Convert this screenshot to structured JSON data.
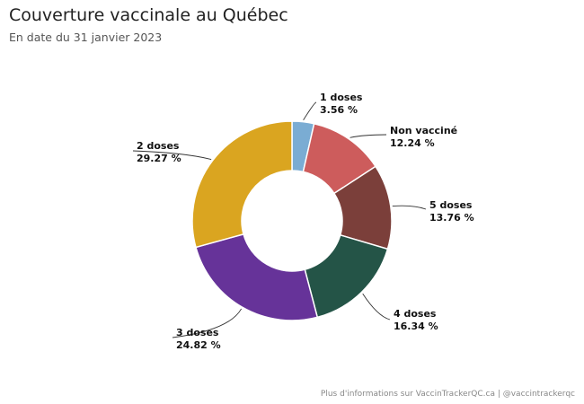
{
  "header": {
    "title": "Couverture vaccinale au Québec",
    "subtitle": "En date du 31 janvier 2023"
  },
  "footer": {
    "credit": "Plus d'informations sur VaccinTrackerQC.ca | @vaccintrackerqc"
  },
  "chart_data": {
    "type": "pie",
    "donut": true,
    "title": "Couverture vaccinale au Québec",
    "subtitle": "En date du 31 janvier 2023",
    "slices": [
      {
        "label": "1 doses",
        "value": 3.56,
        "value_label": "3.56 %",
        "color": "#7aacd3"
      },
      {
        "label": "Non vacciné",
        "value": 12.24,
        "value_label": "12.24 %",
        "color": "#cd5c5c"
      },
      {
        "label": "5 doses",
        "value": 13.76,
        "value_label": "13.76 %",
        "color": "#7b3f3a"
      },
      {
        "label": "4 doses",
        "value": 16.34,
        "value_label": "16.34 %",
        "color": "#245447"
      },
      {
        "label": "3 doses",
        "value": 24.82,
        "value_label": "24.82 %",
        "color": "#663399"
      },
      {
        "label": "2 doses",
        "value": 29.27,
        "value_label": "29.27 %",
        "color": "#daa520"
      }
    ]
  }
}
